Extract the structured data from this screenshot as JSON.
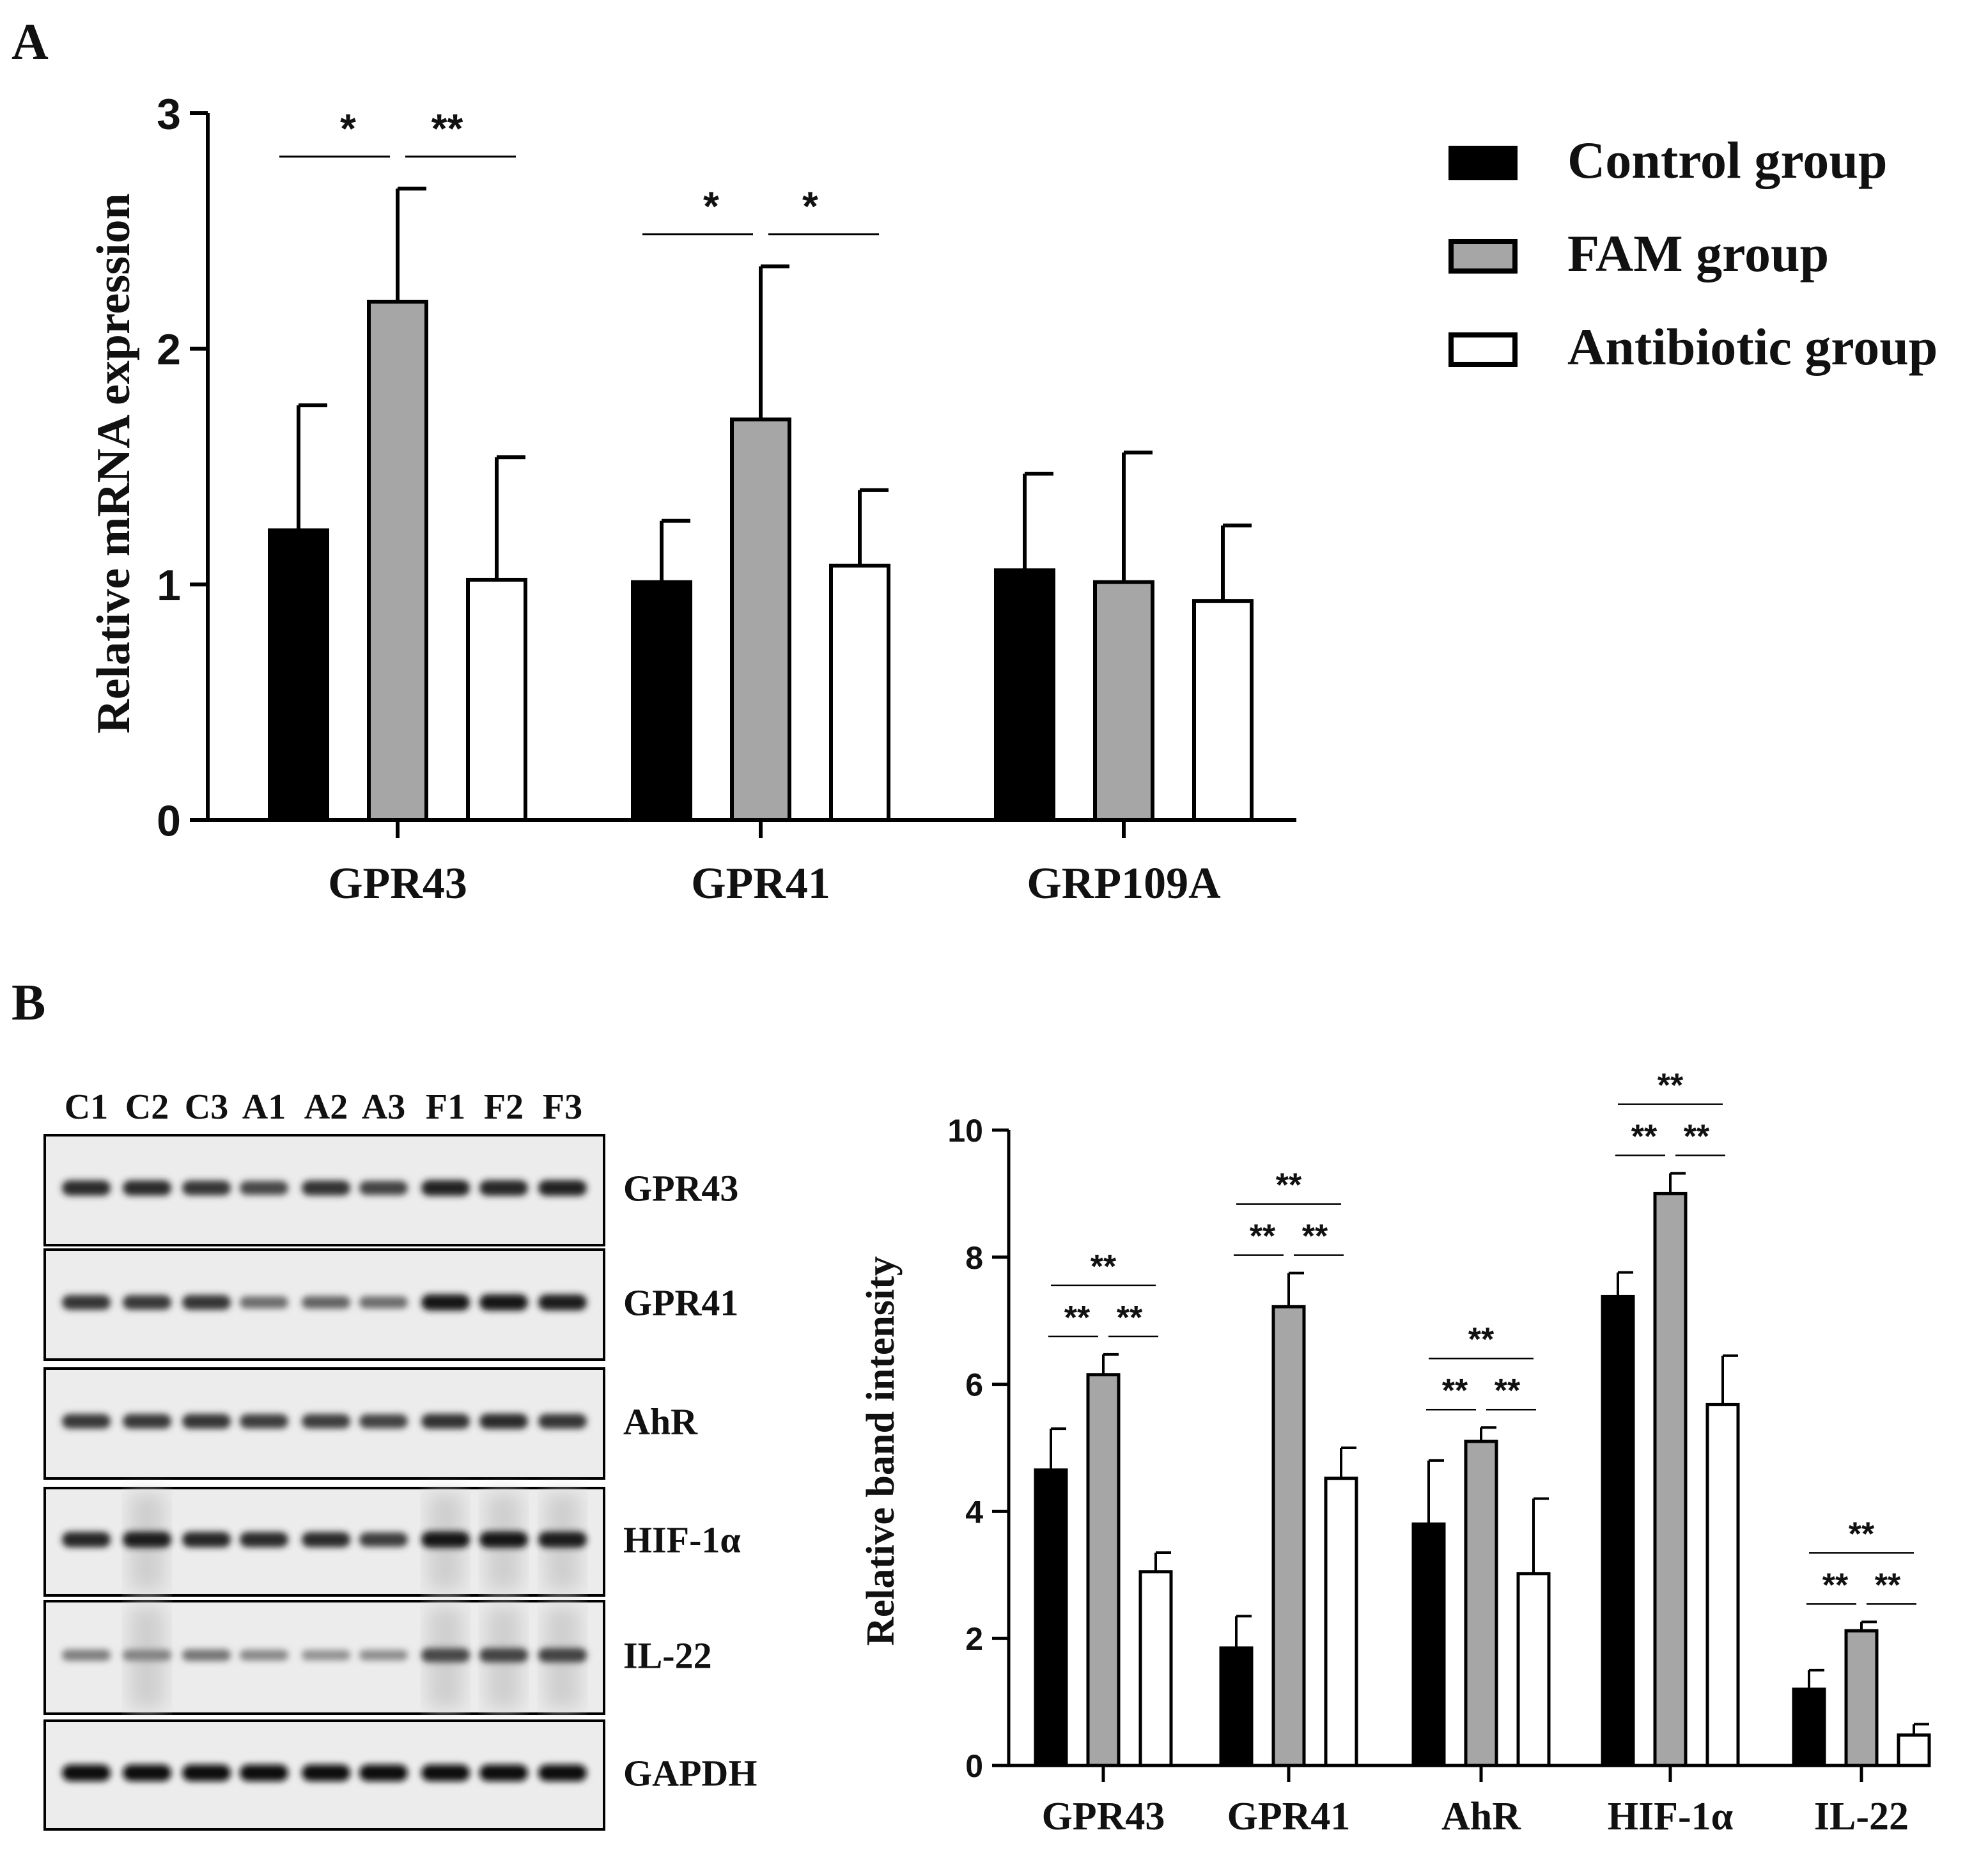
{
  "panels": {
    "a": "A",
    "b": "B"
  },
  "colors": {
    "control": "#000000",
    "fam": "#a6a6a6",
    "antibiotic": "#ffffff",
    "stroke": "#000000"
  },
  "legend": [
    {
      "label": "Control group",
      "color": "#000000"
    },
    {
      "label": "FAM group",
      "color": "#a6a6a6"
    },
    {
      "label": "Antibiotic group",
      "color": "#ffffff"
    }
  ],
  "chart_data": [
    {
      "type": "bar",
      "panel": "A",
      "ylabel": "Relative mRNA expression",
      "ylim": [
        0,
        3
      ],
      "yticks": [
        "0",
        "1",
        "2",
        "3"
      ],
      "categories": [
        "GPR43",
        "GPR41",
        "GRP109A"
      ],
      "series": [
        {
          "name": "Control group",
          "values": [
            1.23,
            1.01,
            1.06
          ],
          "errors": [
            0.53,
            0.26,
            0.41
          ]
        },
        {
          "name": "FAM group",
          "values": [
            2.2,
            1.7,
            1.01
          ],
          "errors": [
            0.48,
            0.65,
            0.55
          ]
        },
        {
          "name": "Antibiotic group",
          "values": [
            1.02,
            1.08,
            0.93
          ],
          "errors": [
            0.52,
            0.32,
            0.32
          ]
        }
      ],
      "significance": [
        {
          "category": "GPR43",
          "left": "*",
          "right": "**"
        },
        {
          "category": "GPR41",
          "left": "*",
          "right": "*"
        }
      ]
    },
    {
      "type": "bar",
      "panel": "B",
      "ylabel": "Relative band intensity",
      "ylim": [
        0,
        10
      ],
      "yticks": [
        "0",
        "2",
        "4",
        "6",
        "8",
        "10"
      ],
      "categories": [
        "GPR43",
        "GPR41",
        "AhR",
        "HIF-1α",
        "IL-22"
      ],
      "series": [
        {
          "name": "Control group",
          "values": [
            4.65,
            1.85,
            3.8,
            7.38,
            1.2
          ],
          "errors": [
            0.65,
            0.5,
            1.0,
            0.38,
            0.3
          ]
        },
        {
          "name": "FAM group",
          "values": [
            6.15,
            7.22,
            5.1,
            9.0,
            2.12
          ],
          "errors": [
            0.32,
            0.53,
            0.22,
            0.32,
            0.14
          ]
        },
        {
          "name": "Antibiotic group",
          "values": [
            3.05,
            4.52,
            3.02,
            5.68,
            0.48
          ],
          "errors": [
            0.3,
            0.48,
            1.18,
            0.77,
            0.17
          ]
        }
      ],
      "significance": [
        {
          "category": "GPR43",
          "left": "**",
          "right": "**",
          "top": "**"
        },
        {
          "category": "GPR41",
          "left": "**",
          "right": "**",
          "top": "**"
        },
        {
          "category": "AhR",
          "left": "**",
          "right": "**",
          "top": "**"
        },
        {
          "category": "HIF-1α",
          "left": "**",
          "right": "**",
          "top": "**"
        },
        {
          "category": "IL-22",
          "left": "**",
          "right": "**",
          "top": "**"
        }
      ]
    }
  ],
  "western_blot": {
    "lanes": [
      "C1",
      "C2",
      "C3",
      "A1",
      "A2",
      "A3",
      "F1",
      "F2",
      "F3"
    ],
    "rows": [
      {
        "label": "GPR43",
        "intensity": [
          0.85,
          0.85,
          0.8,
          0.7,
          0.82,
          0.72,
          0.9,
          0.88,
          0.9
        ]
      },
      {
        "label": "GPR41",
        "intensity": [
          0.8,
          0.78,
          0.8,
          0.5,
          0.55,
          0.5,
          0.95,
          0.95,
          0.92
        ]
      },
      {
        "label": "AhR",
        "intensity": [
          0.78,
          0.78,
          0.8,
          0.75,
          0.75,
          0.72,
          0.82,
          0.85,
          0.8
        ]
      },
      {
        "label": "HIF-1α",
        "intensity": [
          0.88,
          0.92,
          0.88,
          0.85,
          0.85,
          0.75,
          0.95,
          0.95,
          0.92
        ]
      },
      {
        "label": "IL-22",
        "intensity": [
          0.4,
          0.38,
          0.45,
          0.35,
          0.3,
          0.32,
          0.7,
          0.72,
          0.72
        ]
      },
      {
        "label": "GAPDH",
        "intensity": [
          1.0,
          1.0,
          1.0,
          1.0,
          1.0,
          1.0,
          1.0,
          1.0,
          1.0
        ]
      }
    ]
  }
}
